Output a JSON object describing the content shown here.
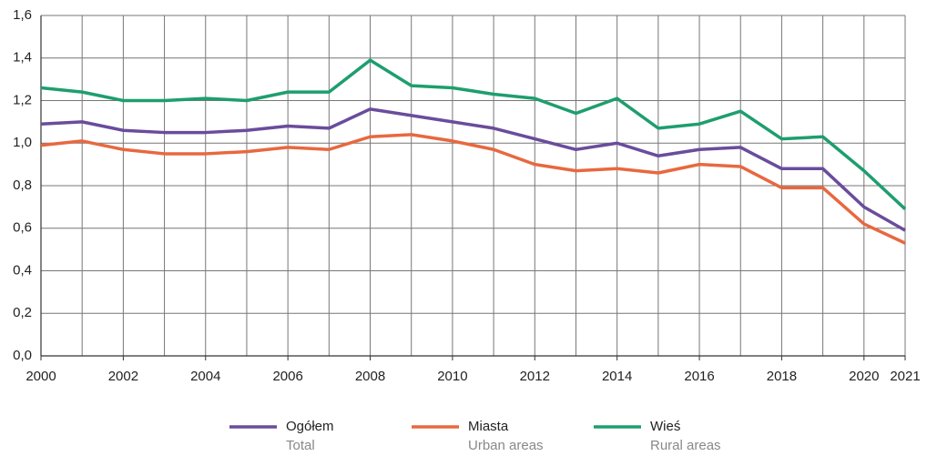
{
  "chart_data": {
    "type": "line",
    "x": [
      2000,
      2001,
      2002,
      2003,
      2004,
      2005,
      2006,
      2007,
      2008,
      2009,
      2010,
      2011,
      2012,
      2013,
      2014,
      2015,
      2016,
      2017,
      2018,
      2019,
      2020,
      2021
    ],
    "xlim": [
      2000,
      2021
    ],
    "xticks": [
      2000,
      2002,
      2004,
      2006,
      2008,
      2010,
      2012,
      2014,
      2016,
      2018,
      2020,
      2021
    ],
    "ylim": [
      0,
      1.6
    ],
    "yticks": [
      {
        "value": 0,
        "label": "0,0"
      },
      {
        "value": 0.2,
        "label": "0,2"
      },
      {
        "value": 0.4,
        "label": "0,4"
      },
      {
        "value": 0.6,
        "label": "0,6"
      },
      {
        "value": 0.8,
        "label": "0,8"
      },
      {
        "value": 1.0,
        "label": "1,0"
      },
      {
        "value": 1.2,
        "label": "1,2"
      },
      {
        "value": 1.4,
        "label": "1,4"
      },
      {
        "value": 1.6,
        "label": "1,6"
      }
    ],
    "grid": true,
    "legend": "bottom",
    "series": [
      {
        "name": "Ogółem",
        "name_en": "Total",
        "color": "#6a4c9c",
        "values": [
          1.09,
          1.1,
          1.06,
          1.05,
          1.05,
          1.06,
          1.08,
          1.07,
          1.16,
          1.13,
          1.1,
          1.07,
          1.02,
          0.97,
          1.0,
          0.94,
          0.97,
          0.98,
          0.88,
          0.88,
          0.7,
          0.59
        ]
      },
      {
        "name": "Miasta",
        "name_en": "Urban areas",
        "color": "#e8683f",
        "values": [
          0.99,
          1.01,
          0.97,
          0.95,
          0.95,
          0.96,
          0.98,
          0.97,
          1.03,
          1.04,
          1.01,
          0.97,
          0.9,
          0.87,
          0.88,
          0.86,
          0.9,
          0.89,
          0.79,
          0.79,
          0.62,
          0.53
        ]
      },
      {
        "name": "Wieś",
        "name_en": "Rural areas",
        "color": "#1e9e6e",
        "values": [
          1.26,
          1.24,
          1.2,
          1.2,
          1.21,
          1.2,
          1.24,
          1.24,
          1.39,
          1.27,
          1.26,
          1.23,
          1.21,
          1.14,
          1.21,
          1.07,
          1.09,
          1.15,
          1.02,
          1.03,
          0.87,
          0.69
        ]
      }
    ]
  }
}
